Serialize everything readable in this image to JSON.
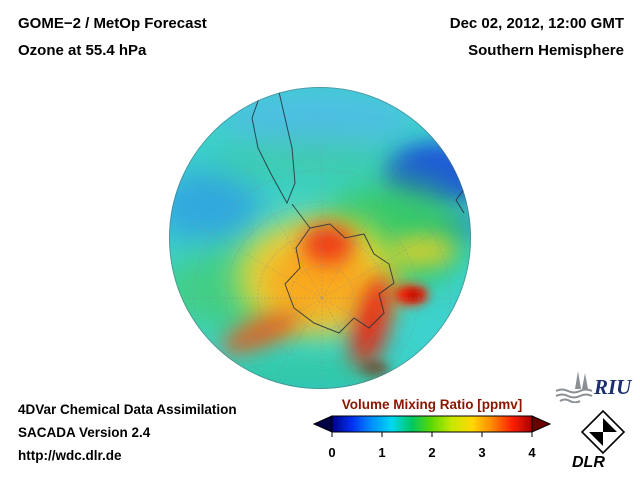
{
  "header": {
    "title_line1": "GOME−2 / MetOp Forecast",
    "title_line2": "Ozone at 55.4 hPa",
    "date": "Dec 02, 2012, 12:00 GMT",
    "region": "Southern Hemisphere"
  },
  "footer": {
    "line1": "4DVar Chemical Data Assimilation",
    "line2": "SACADA Version 2.4",
    "line3": "http://wdc.dlr.de"
  },
  "colorbar": {
    "title": "Volume Mixing Ratio [ppmv]",
    "title_color": "#8b1500",
    "unit": "ppmv",
    "min": 0,
    "max": 4,
    "ticks": [
      "0",
      "1",
      "2",
      "3",
      "4"
    ],
    "colors": [
      "#000086",
      "#0030f0",
      "#0090ff",
      "#00d8f0",
      "#00c860",
      "#60d800",
      "#c8e800",
      "#ffd800",
      "#ff8800",
      "#ff2000",
      "#a80000"
    ],
    "arrow_left_color": "#000045",
    "arrow_right_color": "#6a0000"
  },
  "logos": {
    "riu": "RIU",
    "dlr": "DLR"
  }
}
